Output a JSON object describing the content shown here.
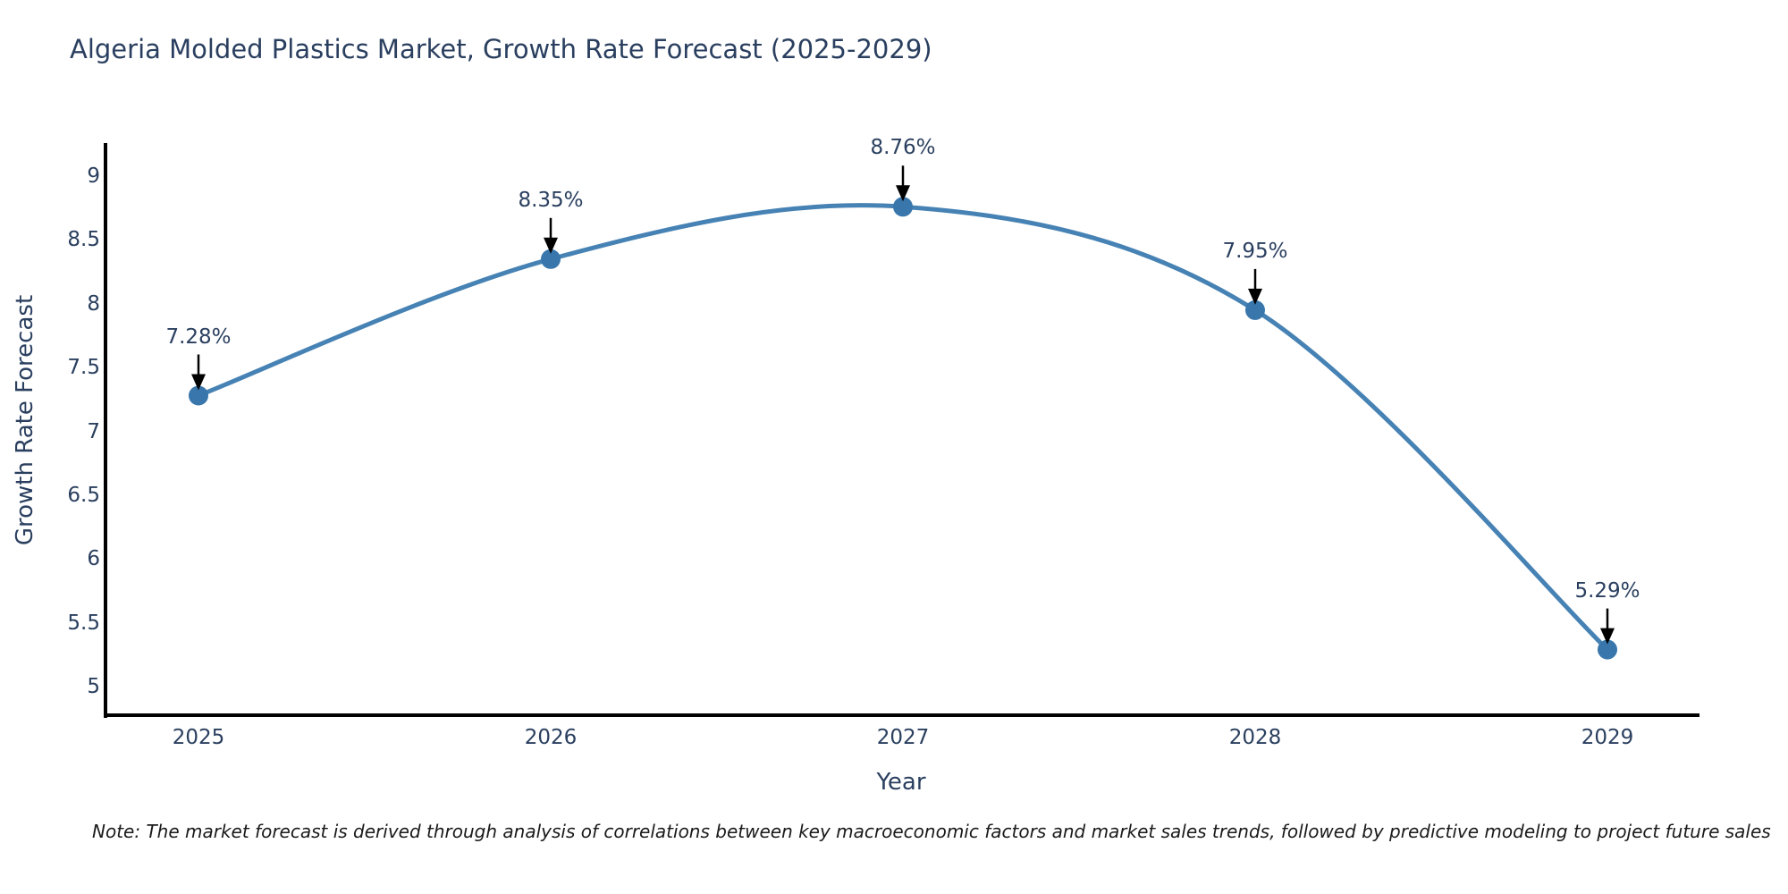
{
  "chart_data": {
    "type": "line",
    "line_shape": "spline",
    "title": "Algeria Molded Plastics Market, Growth Rate Forecast (2025-2029)",
    "xlabel": "Year",
    "ylabel": "Growth Rate Forecast",
    "x": [
      2025,
      2026,
      2027,
      2028,
      2029
    ],
    "y": [
      7.28,
      8.35,
      8.76,
      7.95,
      5.29
    ],
    "point_labels": [
      "7.28%",
      "8.35%",
      "8.76%",
      "7.95%",
      "5.29%"
    ],
    "xticks": [
      "2025",
      "2026",
      "2027",
      "2028",
      "2029"
    ],
    "yticks": [
      "9",
      "8.5",
      "8",
      "7.5",
      "7",
      "6.5",
      "6",
      "5.5",
      "5"
    ],
    "ylim": [
      5,
      9
    ],
    "grid": false,
    "legend": "none",
    "annotation_style": "black arrow pointing down to each data point",
    "colors": {
      "line": "#4682b4",
      "marker": "#3876ac",
      "axis": "#000000",
      "text": "#2a3f5f",
      "annotation_arrow": "#000000"
    }
  },
  "note": {
    "text": "Note: The market forecast is derived through analysis of correlations between key macroeconomic factors and market sales trends, followed by predictive modeling to project future sales"
  }
}
